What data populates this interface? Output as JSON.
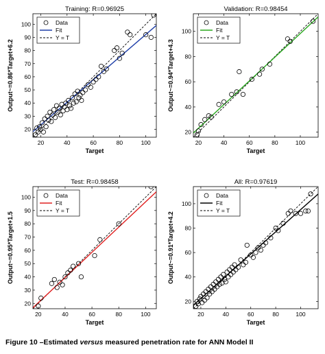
{
  "caption": {
    "prefix": "Figure 10 –Estimated ",
    "emphasis": "versus",
    "suffix": " measured penetration rate for ANN Model II"
  },
  "chart_data": [
    {
      "type": "scatter",
      "title": "Training: R=0.96925",
      "xlabel": "Target",
      "ylabel": "Output~=0.86*Target+6.2",
      "xlim": [
        14,
        108
      ],
      "ylim": [
        14,
        108
      ],
      "xticks": [
        20,
        40,
        60,
        80,
        100
      ],
      "yticks": [
        20,
        30,
        40,
        50,
        60,
        70,
        80,
        90,
        100
      ],
      "grid": false,
      "legend": {
        "position": "top-left",
        "entries": [
          "Data",
          "Fit",
          "Y = T"
        ]
      },
      "fit": {
        "slope": 0.86,
        "intercept": 6.2,
        "color": "#1f3fa8"
      },
      "points": [
        [
          16,
          16
        ],
        [
          17,
          21
        ],
        [
          18,
          18
        ],
        [
          19,
          22
        ],
        [
          20,
          20
        ],
        [
          21,
          25
        ],
        [
          22,
          18
        ],
        [
          23,
          28
        ],
        [
          24,
          22
        ],
        [
          25,
          30
        ],
        [
          26,
          27
        ],
        [
          27,
          33
        ],
        [
          28,
          26
        ],
        [
          29,
          31
        ],
        [
          30,
          35
        ],
        [
          31,
          29
        ],
        [
          32,
          38
        ],
        [
          33,
          33
        ],
        [
          34,
          36
        ],
        [
          35,
          31
        ],
        [
          36,
          39
        ],
        [
          37,
          34
        ],
        [
          38,
          37
        ],
        [
          39,
          40
        ],
        [
          40,
          35
        ],
        [
          41,
          42
        ],
        [
          42,
          38
        ],
        [
          43,
          36
        ],
        [
          44,
          44
        ],
        [
          45,
          40
        ],
        [
          46,
          47
        ],
        [
          47,
          41
        ],
        [
          48,
          49
        ],
        [
          49,
          44
        ],
        [
          50,
          46
        ],
        [
          51,
          42
        ],
        [
          52,
          48
        ],
        [
          54,
          50
        ],
        [
          56,
          54
        ],
        [
          58,
          52
        ],
        [
          60,
          56
        ],
        [
          62,
          58
        ],
        [
          64,
          60
        ],
        [
          66,
          68
        ],
        [
          68,
          64
        ],
        [
          70,
          66
        ],
        [
          76,
          80
        ],
        [
          78,
          82
        ],
        [
          80,
          74
        ],
        [
          82,
          78
        ],
        [
          86,
          94
        ],
        [
          88,
          92
        ],
        [
          100,
          92
        ],
        [
          104,
          90
        ],
        [
          106,
          107
        ]
      ]
    },
    {
      "type": "scatter",
      "title": "Validation: R=0.98454",
      "xlabel": "Target",
      "ylabel": "Output~=0.94*Target+4.3",
      "xlim": [
        16,
        114
      ],
      "ylim": [
        16,
        114
      ],
      "xticks": [
        20,
        40,
        60,
        80,
        100
      ],
      "yticks": [
        20,
        40,
        60,
        80,
        100
      ],
      "grid": false,
      "legend": {
        "position": "top-left",
        "entries": [
          "Data",
          "Fit",
          "Y = T"
        ]
      },
      "fit": {
        "slope": 0.94,
        "intercept": 4.3,
        "color": "#2aa81f"
      },
      "points": [
        [
          19,
          18
        ],
        [
          20,
          21
        ],
        [
          22,
          26
        ],
        [
          25,
          30
        ],
        [
          28,
          33
        ],
        [
          30,
          32
        ],
        [
          36,
          42
        ],
        [
          40,
          44
        ],
        [
          46,
          50
        ],
        [
          50,
          52
        ],
        [
          52,
          68
        ],
        [
          55,
          50
        ],
        [
          62,
          62
        ],
        [
          68,
          66
        ],
        [
          70,
          70
        ],
        [
          76,
          74
        ],
        [
          90,
          94
        ],
        [
          92,
          92
        ],
        [
          110,
          108
        ]
      ]
    },
    {
      "type": "scatter",
      "title": "Test: R=0.98458",
      "xlabel": "Target",
      "ylabel": "Output~=0.95*Target+1.5",
      "xlim": [
        16,
        108
      ],
      "ylim": [
        16,
        108
      ],
      "xticks": [
        20,
        40,
        60,
        80,
        100
      ],
      "yticks": [
        20,
        30,
        40,
        50,
        60,
        70,
        80,
        90,
        100
      ],
      "grid": false,
      "legend": {
        "position": "top-left",
        "entries": [
          "Data",
          "Fit",
          "Y = T"
        ]
      },
      "fit": {
        "slope": 0.95,
        "intercept": 1.5,
        "color": "#e02020"
      },
      "points": [
        [
          20,
          18
        ],
        [
          22,
          24
        ],
        [
          30,
          35
        ],
        [
          32,
          38
        ],
        [
          34,
          32
        ],
        [
          36,
          36
        ],
        [
          38,
          34
        ],
        [
          40,
          40
        ],
        [
          42,
          43
        ],
        [
          44,
          45
        ],
        [
          46,
          48
        ],
        [
          50,
          50
        ],
        [
          52,
          40
        ],
        [
          62,
          56
        ],
        [
          66,
          68
        ],
        [
          80,
          80
        ],
        [
          104,
          108
        ]
      ]
    },
    {
      "type": "scatter",
      "title": "All: R=0.97619",
      "xlabel": "Target",
      "ylabel": "Output~=0.91*Target+4.2",
      "xlim": [
        14,
        114
      ],
      "ylim": [
        14,
        114
      ],
      "xticks": [
        20,
        40,
        60,
        80,
        100
      ],
      "yticks": [
        20,
        40,
        60,
        80,
        100
      ],
      "grid": false,
      "legend": {
        "position": "top-left",
        "entries": [
          "Data",
          "Fit",
          "Y = T"
        ]
      },
      "fit": {
        "slope": 0.91,
        "intercept": 4.2,
        "color": "#000000"
      },
      "points": [
        [
          16,
          16
        ],
        [
          17,
          20
        ],
        [
          18,
          18
        ],
        [
          19,
          22
        ],
        [
          20,
          24
        ],
        [
          21,
          19
        ],
        [
          22,
          26
        ],
        [
          23,
          21
        ],
        [
          24,
          28
        ],
        [
          25,
          23
        ],
        [
          26,
          30
        ],
        [
          27,
          26
        ],
        [
          28,
          32
        ],
        [
          29,
          28
        ],
        [
          30,
          34
        ],
        [
          31,
          30
        ],
        [
          32,
          36
        ],
        [
          33,
          32
        ],
        [
          34,
          38
        ],
        [
          35,
          34
        ],
        [
          36,
          40
        ],
        [
          37,
          35
        ],
        [
          38,
          42
        ],
        [
          39,
          38
        ],
        [
          40,
          36
        ],
        [
          41,
          44
        ],
        [
          42,
          40
        ],
        [
          43,
          46
        ],
        [
          44,
          42
        ],
        [
          45,
          48
        ],
        [
          46,
          44
        ],
        [
          47,
          50
        ],
        [
          48,
          46
        ],
        [
          50,
          48
        ],
        [
          52,
          54
        ],
        [
          54,
          50
        ],
        [
          56,
          52
        ],
        [
          57,
          66
        ],
        [
          60,
          58
        ],
        [
          62,
          56
        ],
        [
          64,
          60
        ],
        [
          66,
          64
        ],
        [
          68,
          62
        ],
        [
          70,
          66
        ],
        [
          72,
          68
        ],
        [
          76,
          72
        ],
        [
          80,
          80
        ],
        [
          82,
          78
        ],
        [
          86,
          84
        ],
        [
          90,
          92
        ],
        [
          92,
          94
        ],
        [
          96,
          92
        ],
        [
          100,
          92
        ],
        [
          104,
          94
        ],
        [
          106,
          94
        ],
        [
          108,
          108
        ]
      ]
    }
  ]
}
